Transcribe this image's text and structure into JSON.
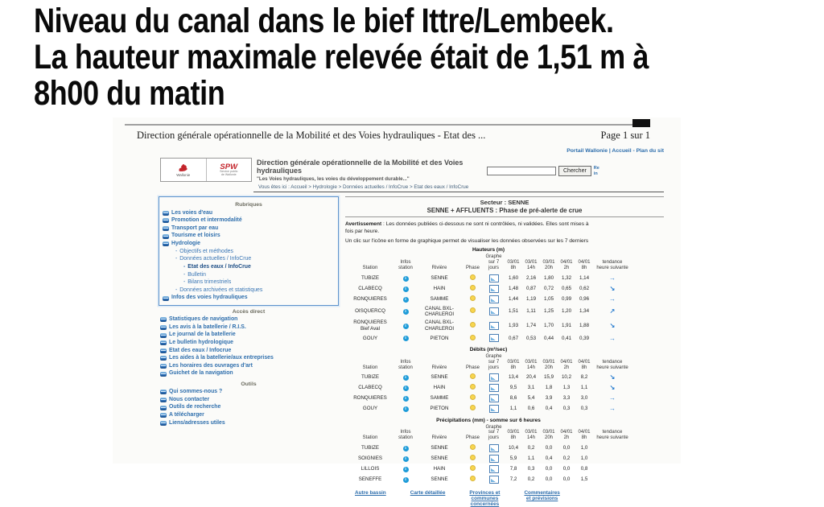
{
  "slide": {
    "title_lines": [
      "Niveau du canal dans le bief Ittre/Lembeek.",
      "La hauteur maximale relevée était de 1,51 m à",
      "8h00 du matin"
    ]
  },
  "print_header": {
    "left": "Direction générale opérationnelle de la Mobilité et des Voies hydrauliques - Etat des ...",
    "right": "Page 1 sur 1"
  },
  "site": {
    "top_links": "Portail Wallonie | Accueil - Plan du sit",
    "logo_wallonie": "Wallonie",
    "logo_spw": "SPW",
    "logo_spw_sub": "Service public\nde Wallonie",
    "title": "Direction générale opérationnelle de la Mobilité et des Voies hydrauliques",
    "subtitle": "\"Les Voies hydrauliques, les voies du développement durable...\"",
    "search_value": "",
    "search_button": "Chercher",
    "side1": "Re",
    "side2": "in",
    "breadcrumb": "Vous êtes ici : Accueil > Hydrologie > Données actuelles / InfoCrue > Etat des eaux / InfoCrue"
  },
  "sidebar": {
    "rubriques_title": "Rubriques",
    "rubriques": [
      {
        "label": "Les voies d'eau",
        "lv": 0
      },
      {
        "label": "Promotion et intermodalité",
        "lv": 0
      },
      {
        "label": "Transport par eau",
        "lv": 0
      },
      {
        "label": "Tourisme et loisirs",
        "lv": 0
      },
      {
        "label": "Hydrologie",
        "lv": 0
      },
      {
        "label": "Objectifs et méthodes",
        "lv": 1
      },
      {
        "label": "Données actuelles / InfoCrue",
        "lv": 1
      },
      {
        "label": "Etat des eaux / InfoCrue",
        "lv": 2,
        "bold": true
      },
      {
        "label": "Bulletin",
        "lv": 2
      },
      {
        "label": "Bilans trimestriels",
        "lv": 2
      },
      {
        "label": "Données archivées et statistiques",
        "lv": 1
      },
      {
        "label": "Infos des voies hydrauliques",
        "lv": 0
      }
    ],
    "acces_title": "Accès direct",
    "acces": [
      "Statistiques de navigation",
      "Les avis à la batellerie / R.I.S.",
      "Le journal de la batellerie",
      "Le bulletin hydrologique",
      "Etat des eaux / Infocrue",
      "Les aides à la batellerie/aux entreprises",
      "Les horaires des ouvrages d'art",
      "Guichet de la navigation"
    ],
    "outils_title": "Outils",
    "outils": [
      "Qui sommes-nous ?",
      "Nous contacter",
      "Outils de recherche",
      "A télécharger",
      "Liens/adresses utiles"
    ]
  },
  "main": {
    "sector_line1": "Secteur : SENNE",
    "sector_line2": "SENNE + AFFLUENTS : Phase de pré-alerte de crue",
    "warning_bold": "Avertissement",
    "warning_rest": " : Les données publiées ci-dessous ne sont ni contrôlées, ni validées. Elles sont mises à",
    "warning_line2": "fois par heure.",
    "info_line": "Un clic sur l'icône en forme de graphique permet de visualiser les données observées sur les 7 derniers",
    "col_headers": [
      "Station",
      "Infos\nstation",
      "Rivière",
      "Phase",
      "Graphe\nsur 7\njours",
      "03/01\n8h",
      "03/01\n14h",
      "03/01\n20h",
      "04/01\n2h",
      "04/01\n8h",
      "tendance\nheure suivante"
    ],
    "tables": [
      {
        "title": "Hauteurs (m)",
        "rows": [
          {
            "station": "TUBIZE",
            "riviere": "SENNE",
            "values": [
              "1,60",
              "2,16",
              "1,80",
              "1,32",
              "1,14"
            ],
            "trend": "right"
          },
          {
            "station": "CLABECQ",
            "riviere": "HAIN",
            "values": [
              "1,48",
              "0,87",
              "0,72",
              "0,65",
              "0,62"
            ],
            "trend": "down"
          },
          {
            "station": "RONQUIERES",
            "riviere": "SAMME",
            "values": [
              "1,44",
              "1,19",
              "1,05",
              "0,99",
              "0,96"
            ],
            "trend": "right"
          },
          {
            "station": "OISQUERCQ",
            "riviere": "CANAL BXL-\nCHARLEROI",
            "values": [
              "1,51",
              "1,11",
              "1,25",
              "1,20",
              "1,34"
            ],
            "trend": "up"
          },
          {
            "station": "RONQUIERES\nBief Aval",
            "riviere": "CANAL BXL-\nCHARLEROI",
            "values": [
              "1,93",
              "1,74",
              "1,70",
              "1,91",
              "1,88"
            ],
            "trend": "down"
          },
          {
            "station": "GOUY",
            "riviere": "PIETON",
            "values": [
              "0,67",
              "0,53",
              "0,44",
              "0,41",
              "0,39"
            ],
            "trend": "right"
          }
        ]
      },
      {
        "title": "Débits (m³/sec)",
        "rows": [
          {
            "station": "TUBIZE",
            "riviere": "SENNE",
            "values": [
              "13,4",
              "20,4",
              "15,9",
              "10,2",
              "8,2"
            ],
            "trend": "down"
          },
          {
            "station": "CLABECQ",
            "riviere": "HAIN",
            "values": [
              "9,5",
              "3,1",
              "1,8",
              "1,3",
              "1,1"
            ],
            "trend": "down"
          },
          {
            "station": "RONQUIERES",
            "riviere": "SAMME",
            "values": [
              "8,6",
              "5,4",
              "3,9",
              "3,3",
              "3,0"
            ],
            "trend": "right"
          },
          {
            "station": "GOUY",
            "riviere": "PIETON",
            "values": [
              "1,1",
              "0,6",
              "0,4",
              "0,3",
              "0,3"
            ],
            "trend": "right"
          }
        ]
      },
      {
        "title": "Précipitations (mm) - somme sur 6 heures",
        "rows": [
          {
            "station": "TUBIZE",
            "riviere": "SENNE",
            "values": [
              "10,4",
              "0,2",
              "0,0",
              "0,0",
              "1,0"
            ],
            "trend": ""
          },
          {
            "station": "SOIGNIES",
            "riviere": "SENNE",
            "values": [
              "5,9",
              "1,1",
              "0,4",
              "0,2",
              "1,0"
            ],
            "trend": ""
          },
          {
            "station": "LILLOIS",
            "riviere": "HAIN",
            "values": [
              "7,8",
              "0,3",
              "0,0",
              "0,0",
              "0,8"
            ],
            "trend": ""
          },
          {
            "station": "SENEFFE",
            "riviere": "SENNE",
            "values": [
              "7,2",
              "0,2",
              "0,0",
              "0,0",
              "1,5"
            ],
            "trend": ""
          }
        ]
      }
    ],
    "footer_links": [
      "Autre bassin",
      "Carte détaillée",
      "Provinces et\ncommunes\nconcernées",
      "Commentaires\net prévisions"
    ]
  },
  "icons": {
    "info_glyph": "i",
    "trend_glyphs": {
      "right": "→",
      "down": "↘",
      "up": "↗"
    }
  },
  "colors": {
    "link_blue": "#2f6fad",
    "phase_yellow": "#f8d64e",
    "info_blue": "#1d9bd8",
    "arrow_blue": "#2d7fd0",
    "spw_red": "#c3242b"
  }
}
